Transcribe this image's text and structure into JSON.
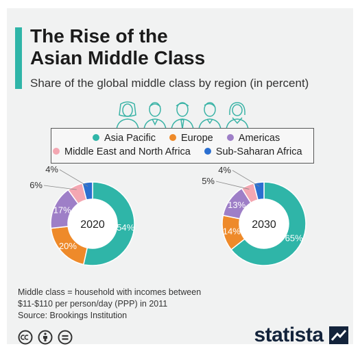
{
  "header": {
    "title_line1": "The Rise of the",
    "title_line2": "Asian Middle Class",
    "subtitle": "Share of the global middle class by region (in percent)"
  },
  "colors": {
    "accent": "#2fb5a8",
    "asia_pacific": "#2fb5a8",
    "europe": "#ee8a2a",
    "americas": "#9e7fc7",
    "mena": "#f4a7b2",
    "ssa": "#2b6fd0"
  },
  "icons": [
    "person-female-icon",
    "person-male-icon",
    "person-male-tie-icon",
    "person-male-icon",
    "person-female-scarf-icon"
  ],
  "legend": {
    "items": [
      {
        "label": "Asia Pacific",
        "color": "#2fb5a8"
      },
      {
        "label": "Europe",
        "color": "#ee8a2a"
      },
      {
        "label": "Americas",
        "color": "#9e7fc7"
      },
      {
        "label": "Middle East and North Africa",
        "color": "#f4a7b2"
      },
      {
        "label": "Sub-Saharan Africa",
        "color": "#2b6fd0"
      }
    ]
  },
  "chart_data": [
    {
      "type": "pie",
      "title": "2020",
      "categories": [
        "Asia Pacific",
        "Europe",
        "Americas",
        "Middle East and North Africa",
        "Sub-Saharan Africa"
      ],
      "values": [
        54,
        20,
        17,
        6,
        4
      ],
      "labels": [
        "54%",
        "20%",
        "17%",
        "6%",
        "4%"
      ]
    },
    {
      "type": "pie",
      "title": "2030",
      "categories": [
        "Asia Pacific",
        "Europe",
        "Americas",
        "Middle East and North Africa",
        "Sub-Saharan Africa"
      ],
      "values": [
        65,
        14,
        13,
        5,
        4
      ],
      "labels": [
        "65%",
        "14%",
        "13%",
        "5%",
        "4%"
      ]
    }
  ],
  "footer": {
    "note_line1": "Middle class = household with incomes between",
    "note_line2": "$11-$110 per person/day (PPP) in 2011",
    "source": "Source: Brookings Institution",
    "license_icons": [
      "cc-icon",
      "attribution-icon",
      "no-derivatives-icon"
    ],
    "brand": "statista"
  }
}
